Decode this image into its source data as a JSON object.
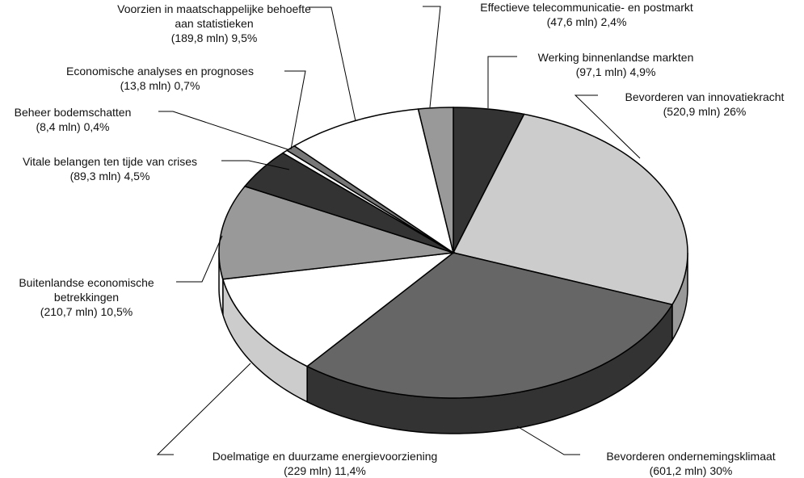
{
  "chart_data": {
    "type": "pie3d",
    "categories": [
      "Werking binnenlandse markten",
      "Bevorderen van innovatiekracht",
      "Bevorderen ondernemingsklimaat",
      "Doelmatige en duurzame energievoorziening",
      "Buitenlandse economische betrekkingen",
      "Vitale belangen ten tijde van crises",
      "Beheer bodemschatten",
      "Economische analyses en prognoses",
      "Voorzien in maatschappelijke behoefte aan statistieken",
      "Effectieve telecommunicatie- en postmarkt"
    ],
    "values": [
      4.9,
      26,
      30,
      11.4,
      10.5,
      4.5,
      0.4,
      0.7,
      9.5,
      2.4
    ],
    "value_labels": [
      "4,9%",
      "26%",
      "30%",
      "11,4%",
      "10,5%",
      "4,5%",
      "0,4%",
      "0,7%",
      "9,5%",
      "2,4%"
    ],
    "amounts": [
      97.1,
      520.9,
      601.2,
      229,
      210.7,
      89.3,
      8.4,
      13.8,
      189.8,
      47.6
    ],
    "amount_labels": [
      "(97,1 mln)",
      "(520,9 mln)",
      "(601,2 mln)",
      "(229 mln)",
      "(210,7 mln)",
      "(89,3 mln)",
      "(8,4 mln)",
      "(13,8 mln)",
      "(189,8 mln)",
      "(47,6 mln)"
    ],
    "colors": [
      "#333333",
      "#cccccc",
      "#666666",
      "#ffffff",
      "#999999",
      "#333333",
      "#ffffff",
      "#777777",
      "#ffffff",
      "#999999"
    ],
    "side_colors": [
      "#222222",
      "#999999",
      "#333333",
      "#cccccc",
      "#eeeeee",
      "#222222",
      "#dddddd",
      "#555555",
      "#dddddd",
      "#777777"
    ]
  }
}
